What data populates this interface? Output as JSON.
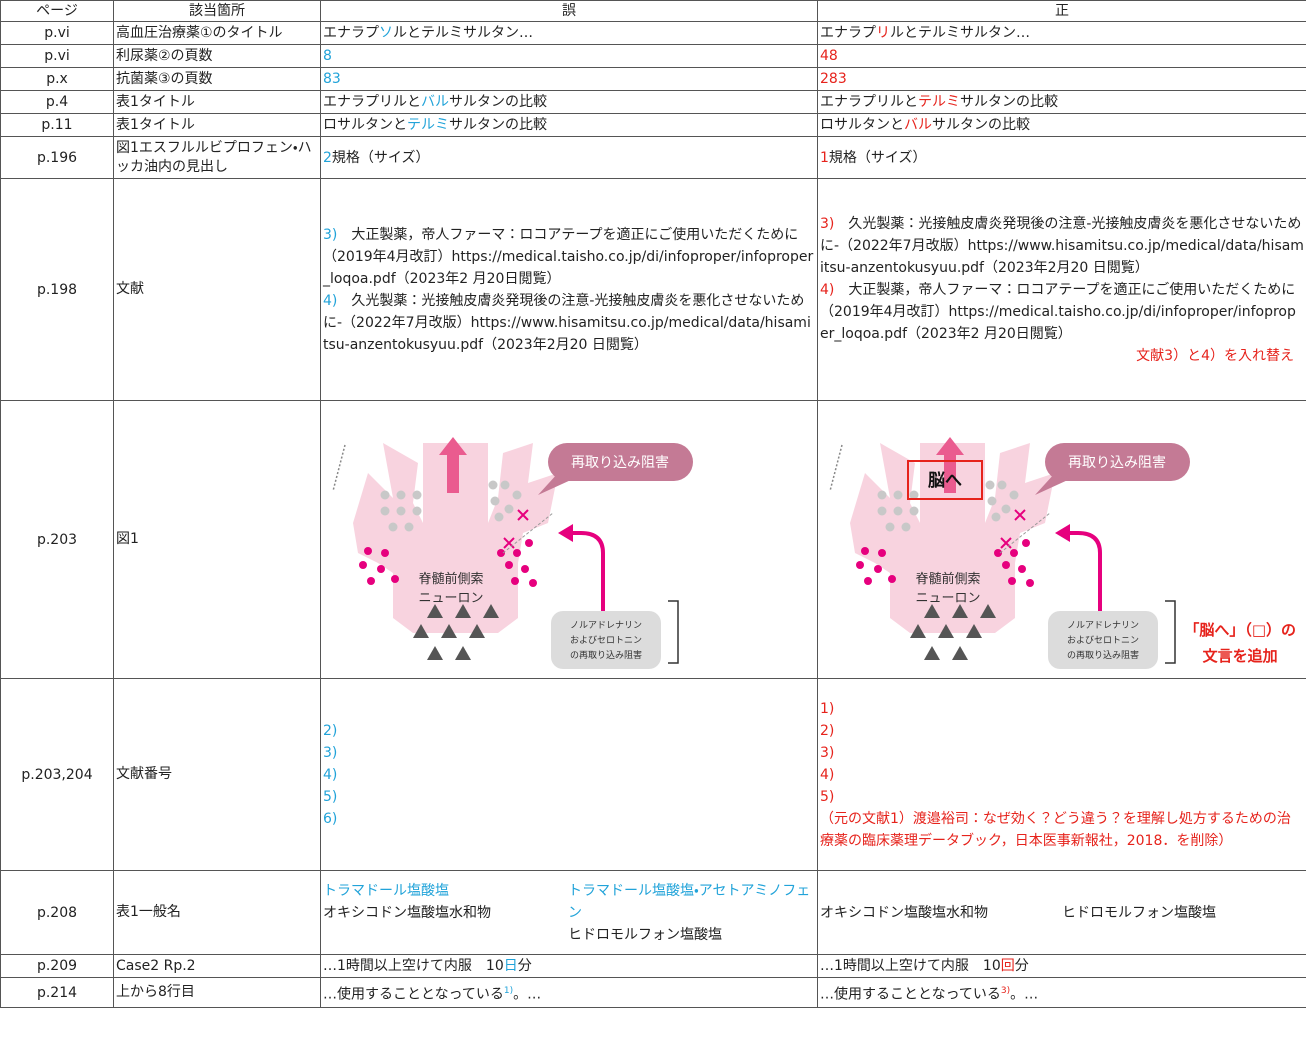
{
  "table": {
    "headers": [
      "ページ",
      "該当箇所",
      "誤",
      "正"
    ],
    "rows": [
      {
        "page": "p.vi",
        "location": "高血圧治療薬①のタイトル",
        "wrong": {
          "blocks": [
            [
              "エナラプ",
              {
                "text": "ソ",
                "color": "#21a3d9"
              },
              "ルとテルミサルタン…"
            ]
          ]
        },
        "correct": {
          "blocks": [
            [
              "エナラプ",
              {
                "text": "リ",
                "color": "#e6231c"
              },
              "ルとテルミサルタン…"
            ]
          ]
        }
      },
      {
        "page": "p.vi",
        "location": "利尿薬②の頁数",
        "wrong": {
          "blocks": [
            [
              {
                "text": "8",
                "color": "#21a3d9"
              }
            ]
          ]
        },
        "correct": {
          "blocks": [
            [
              {
                "text": "48",
                "color": "#e6231c"
              }
            ]
          ]
        }
      },
      {
        "page": "p.x",
        "location": "抗菌薬③の頁数",
        "wrong": {
          "blocks": [
            [
              {
                "text": "83",
                "color": "#21a3d9"
              }
            ]
          ]
        },
        "correct": {
          "blocks": [
            [
              {
                "text": "283",
                "color": "#e6231c"
              }
            ]
          ]
        }
      },
      {
        "page": "p.4",
        "location": "表1タイトル",
        "wrong": {
          "blocks": [
            [
              "エナラプリルと",
              {
                "text": "バル",
                "color": "#21a3d9"
              },
              "サルタンの比較"
            ]
          ]
        },
        "correct": {
          "blocks": [
            [
              "エナラプリルと",
              {
                "text": "テルミ",
                "color": "#e6231c"
              },
              "サルタンの比較"
            ]
          ]
        }
      },
      {
        "page": "p.11",
        "location": "表1タイトル",
        "wrong": {
          "blocks": [
            [
              "ロサルタンと",
              {
                "text": "テルミ",
                "color": "#21a3d9"
              },
              "サルタンの比較"
            ]
          ]
        },
        "correct": {
          "blocks": [
            [
              "ロサルタンと",
              {
                "text": "バル",
                "color": "#e6231c"
              },
              "サルタンの比較"
            ]
          ]
        }
      },
      {
        "page": "p.196",
        "location": "図1エスフルルビプロフェン・ハッカ油内の見出し",
        "wrong": {
          "blocks": [
            [
              {
                "text": "2",
                "color": "#21a3d9"
              },
              "規格（サイズ）"
            ]
          ]
        },
        "correct": {
          "blocks": [
            [
              {
                "text": "1",
                "color": "#e6231c"
              },
              "規格（サイズ）"
            ]
          ]
        }
      },
      {
        "page": "p.198",
        "location": "文献",
        "wrong": {
          "blocks": [
            [
              {
                "text": "3)",
                "color": "#21a3d9"
              },
              "　大正製薬，帝人ファーマ：ロコアテープを適正にご使用いただくために（2019年4月改訂）https://medical.taisho.co.jp/di/infoproper/infoproper_loqoa.pdf（2023年2 月20日閲覧）"
            ],
            [
              {
                "text": "4)",
                "color": "#21a3d9"
              },
              "　久光製薬：光接触皮膚炎発現後の注意-光接触皮膚炎を悪化させないために-（2022年7月改版）https://www.hisamitsu.co.jp/medical/data/hisamitsu-anzentokusyuu.pdf（2023年2月20 日閲覧）"
            ]
          ]
        },
        "correct": {
          "blocks": [
            [
              {
                "text": "3)",
                "color": "#e6231c"
              },
              "　久光製薬：光接触皮膚炎発現後の注意-光接触皮膚炎を悪化させないために-（2022年7月改版）https://www.hisamitsu.co.jp/medical/data/hisamitsu-anzentokusyuu.pdf（2023年2月20 日閲覧）"
            ],
            [
              {
                "text": "4)",
                "color": "#e6231c"
              },
              "　大正製薬，帝人ファーマ：ロコアテープを適正にご使用いただくために（2019年4月改訂）https://medical.taisho.co.jp/di/infoproper/infoproper_loqoa.pdf（2023年2 月20日閲覧）"
            ]
          ],
          "note": {
            "text": "文献3）と4）を入れ替え",
            "color": "#e6231c"
          }
        }
      },
      {
        "page": "p.203",
        "location": "図1",
        "wrong": {
          "figure": {
            "callout": "再取り込み阻害",
            "neuron": [
              "脊髄前側索",
              "ニューロン"
            ],
            "legend": [
              "ノルアドレナリン",
              "およびセロトニン",
              "の再取り込み阻害"
            ]
          }
        },
        "correct": {
          "figure": {
            "callout": "再取り込み阻害",
            "neuron": [
              "脊髄前側索",
              "ニューロン"
            ],
            "legend": [
              "ノルアドレナリン",
              "およびセロトニン",
              "の再取り込み阻害"
            ],
            "added": "脳へ"
          },
          "note": {
            "lines": [
              "「脳へ」（□）の",
              "文言を追加"
            ],
            "color": "#e6231c"
          }
        }
      },
      {
        "page": "p.203,204",
        "location": "文献番号",
        "wrong": {
          "blocks": [
            [
              {
                "text": "2)",
                "color": "#21a3d9"
              }
            ],
            [
              {
                "text": "3)",
                "color": "#21a3d9"
              }
            ],
            [
              {
                "text": "4)",
                "color": "#21a3d9"
              }
            ],
            [
              {
                "text": "5)",
                "color": "#21a3d9"
              }
            ],
            [
              {
                "text": "6)",
                "color": "#21a3d9"
              }
            ]
          ]
        },
        "correct": {
          "blocks": [
            [
              {
                "text": "1)",
                "color": "#e6231c"
              }
            ],
            [
              {
                "text": "2)",
                "color": "#e6231c"
              }
            ],
            [
              {
                "text": "3)",
                "color": "#e6231c"
              }
            ],
            [
              {
                "text": "4)",
                "color": "#e6231c"
              }
            ],
            [
              {
                "text": "5)",
                "color": "#e6231c"
              }
            ],
            [
              {
                "text": "（元の文献1）渡邉裕司：なぜ効く？どう違う？を理解し処方するための治療薬の臨床薬理データブック，日本医事新報社，2018．を削除）",
                "color": "#e6231c"
              }
            ]
          ]
        }
      },
      {
        "page": "p.208",
        "location": "表1一般名",
        "wrong": {
          "columns": [
            [
              [
                {
                  "text": "トラマドール塩酸塩",
                  "color": "#21a3d9"
                }
              ],
              [
                "オキシコドン塩酸塩水和物"
              ]
            ],
            [
              [
                {
                  "text": "トラマドール塩酸塩・アセトアミノフェン",
                  "color": "#21a3d9"
                }
              ],
              [
                "ヒドロモルフォン塩酸塩"
              ]
            ]
          ]
        },
        "correct": {
          "columns": [
            [
              [
                "オキシコドン塩酸塩水和物"
              ]
            ],
            [
              [
                "ヒドロモルフォン塩酸塩"
              ]
            ]
          ]
        }
      },
      {
        "page": "p.209",
        "location": "Case2 Rp.2",
        "wrong": {
          "blocks": [
            [
              "…1時間以上空けて内服　10",
              {
                "text": "日",
                "color": "#21a3d9"
              },
              "分"
            ]
          ]
        },
        "correct": {
          "blocks": [
            [
              "…1時間以上空けて内服　10",
              {
                "text": "回",
                "color": "#e6231c"
              },
              "分"
            ]
          ]
        }
      },
      {
        "page": "p.214",
        "location": "上から8行目",
        "wrong": {
          "blocks": [
            [
              "…使用することとなっている",
              {
                "text": "1)",
                "color": "#21a3d9",
                "sup": true
              },
              "。…"
            ]
          ]
        },
        "correct": {
          "blocks": [
            [
              "…使用することとなっている",
              {
                "text": "3)",
                "color": "#e6231c",
                "sup": true
              },
              "。…"
            ]
          ]
        }
      }
    ]
  }
}
